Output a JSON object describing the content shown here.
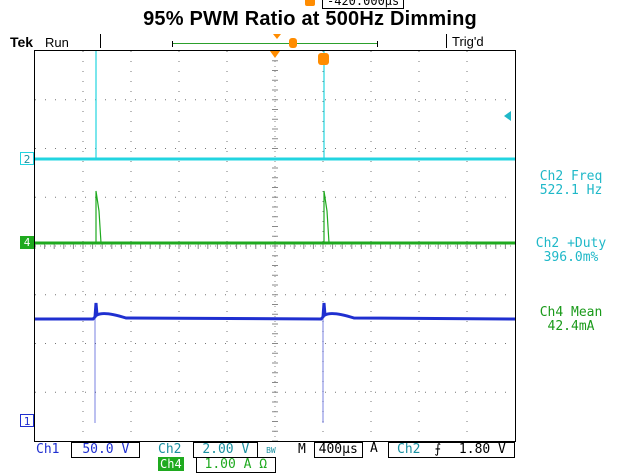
{
  "header": {
    "title": "95% PWM Ratio at 500Hz Dimming",
    "brand": "Tek",
    "run_state": "Run",
    "trigger_state": "Trig'd",
    "trigger_position": "-420.000µs"
  },
  "channels": {
    "ch1_marker": "1",
    "ch2_marker": "2",
    "ch4_marker": "4"
  },
  "measurements": [
    {
      "label": "Ch2 Freq",
      "value": "522.1 Hz",
      "color": "#1fb8c8"
    },
    {
      "label": "Ch2 +Duty",
      "value": "396.0m%",
      "color": "#1fb8c8"
    },
    {
      "label": "Ch4 Mean",
      "value": "42.4mA",
      "color": "#1a9a1a"
    }
  ],
  "status_bar": {
    "ch1_label": "Ch1",
    "ch1_scale": "50.0 V",
    "ch2_label": "Ch2",
    "ch2_scale": "2.00 V",
    "ch2_bw": "BW",
    "ch4_label": "Ch4",
    "ch4_scale": "1.00 A Ω",
    "timebase_prefix": "M",
    "timebase": "400µs",
    "acq_mode": "A",
    "trigger_source": "Ch2",
    "trigger_slope": "⨍",
    "trigger_level": "1.80 V"
  },
  "colors": {
    "ch1": "#1f2fd0",
    "ch2": "#22d4e0",
    "ch4": "#1faa1f",
    "trigger": "#ff8c00"
  }
}
